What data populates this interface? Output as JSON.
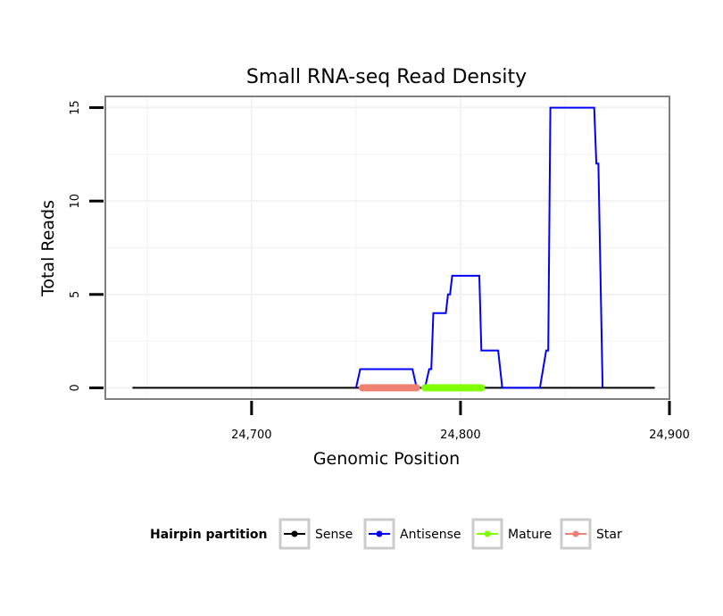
{
  "chart_data": {
    "type": "line",
    "title": "Small RNA-seq Read Density",
    "xlabel": "Genomic Position",
    "ylabel": "Total Reads",
    "xlim": [
      24630,
      24900
    ],
    "ylim": [
      -0.6,
      15.6
    ],
    "x_ticks": [
      24700,
      24800,
      24900
    ],
    "x_tick_labels": [
      "24,700",
      "24,800",
      "24,900"
    ],
    "y_ticks": [
      0,
      5,
      10,
      15
    ],
    "y_tick_labels": [
      "0",
      "5",
      "10",
      "15"
    ],
    "grid": true,
    "legend": {
      "title": "Hairpin partition",
      "position": "bottom",
      "entries": [
        "Sense",
        "Antisense",
        "Mature",
        "Star"
      ]
    },
    "series": [
      {
        "name": "Sense",
        "color": "#000000",
        "x": [
          24643,
          24893
        ],
        "y": [
          0,
          0
        ]
      },
      {
        "name": "Antisense",
        "color": "#0000ff",
        "x": [
          24750,
          24752,
          24777,
          24779,
          24783,
          24785,
          24786,
          24787,
          24793,
          24794,
          24795,
          24796,
          24798,
          24809,
          24810,
          24811,
          24818,
          24820,
          24838,
          24841,
          24842,
          24843,
          24864,
          24865,
          24866,
          24868
        ],
        "y": [
          0,
          1,
          1,
          0,
          0,
          1,
          1,
          4,
          4,
          5,
          5,
          6,
          6,
          6,
          2,
          2,
          2,
          0,
          0,
          2,
          2,
          15,
          15,
          12,
          12,
          0
        ]
      },
      {
        "name": "Mature",
        "color": "#7fff00",
        "x": [
          24783,
          24810
        ],
        "y": [
          0,
          0
        ]
      },
      {
        "name": "Star",
        "color": "#f08070",
        "x": [
          24753,
          24779
        ],
        "y": [
          0,
          0
        ]
      }
    ]
  }
}
